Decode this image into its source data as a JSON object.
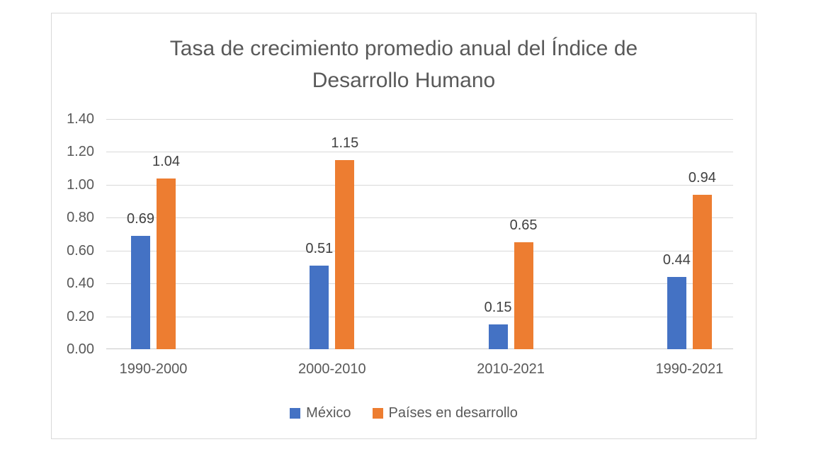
{
  "chart_data": {
    "type": "bar",
    "title": "Tasa de crecimiento promedio anual del Índice de Desarrollo Humano",
    "title_lines": [
      "Tasa de crecimiento promedio anual del Índice de",
      "Desarrollo Humano"
    ],
    "categories": [
      "1990-2000",
      "2000-2010",
      "2010-2021",
      "1990-2021"
    ],
    "series": [
      {
        "name": "México",
        "color": "#4472C4",
        "values": [
          0.69,
          0.51,
          0.15,
          0.44
        ],
        "value_labels": [
          "0.69",
          "0.51",
          "0.15",
          "0.44"
        ]
      },
      {
        "name": "Países en desarrollo",
        "color": "#ED7D31",
        "values": [
          1.04,
          1.15,
          0.65,
          0.94
        ],
        "value_labels": [
          "1.04",
          "1.15",
          "0.65",
          "0.94"
        ]
      }
    ],
    "y_axis": {
      "min": 0,
      "max": 1.4,
      "step": 0.2,
      "tick_labels": [
        "0.00",
        "0.20",
        "0.40",
        "0.60",
        "0.80",
        "1.00",
        "1.20",
        "1.40"
      ]
    },
    "grid": true,
    "legend_position": "bottom"
  },
  "colors": {
    "mexico": "#4472C4",
    "paises_en_desarrollo": "#ED7D31",
    "gridline": "#D9D9D9",
    "axis_line": "#C9C9C9",
    "chart_border": "#D9D9D9",
    "axis_text": "#595959",
    "data_label_text": "#404040",
    "background": "#FFFFFF"
  }
}
